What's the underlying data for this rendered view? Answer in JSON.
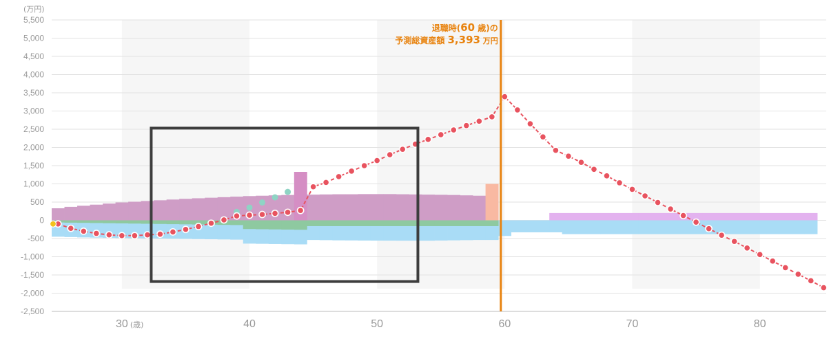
{
  "colors": {
    "band": "#f6f6f6",
    "grid": "#e2e2e2",
    "axis": "#bbbbbb",
    "asset_line": "#e8535f",
    "asset_dot_fill": "#e8535f",
    "asset_dot_stroke": "#ffffff",
    "start_marker": "#f2c21b",
    "retirement_line": "#e8830f",
    "callout_text": "#e8830f",
    "income_purple": "#cf9dc6",
    "income_green": "#8ec9a0",
    "expense_blue": "#a9dcf6",
    "spike_pink": "#d58ec4",
    "spike_peach": "#f9b9a2",
    "pension_violet": "#e3b2ef",
    "teal_dots": "#8fd3c4",
    "highlight_box": "#3d3d3d"
  },
  "chart_data": {
    "type": "line",
    "y_unit": "(万円)",
    "x_unit": "(歳)",
    "ylim": [
      -2500,
      5500
    ],
    "xlim": [
      24.5,
      85.2
    ],
    "y_ticks": [
      "5,500",
      "5,000",
      "4,500",
      "4,000",
      "3,500",
      "3,000",
      "2,500",
      "2,000",
      "1,500",
      "1,000",
      "500",
      "0",
      "-500",
      "-1,000",
      "-1,500",
      "-2,000",
      "-2,500"
    ],
    "y_tick_values": [
      5500,
      5000,
      4500,
      4000,
      3500,
      3000,
      2500,
      2000,
      1500,
      1000,
      500,
      0,
      -500,
      -1000,
      -1500,
      -2000,
      -2500
    ],
    "x_ticks": [
      {
        "value": 30,
        "label": "30",
        "suffix": "(歳)"
      },
      {
        "value": 40,
        "label": "40"
      },
      {
        "value": 50,
        "label": "50"
      },
      {
        "value": 60,
        "label": "60"
      },
      {
        "value": 70,
        "label": "70"
      },
      {
        "value": 80,
        "label": "80"
      }
    ],
    "grid": true,
    "shaded_decades": [
      [
        30,
        40
      ],
      [
        50,
        60
      ],
      [
        70,
        80
      ]
    ],
    "retirement": {
      "age": 59.7,
      "line1_pre": "退職時(",
      "line1_age": "60",
      "line1_post": " 歳)の",
      "line2_label": "予測総資産額",
      "line2_value": "3,393",
      "line2_unit": "万円"
    },
    "series": [
      {
        "id": "total_assets",
        "kind": "dotted-line",
        "x": [
          25,
          26,
          27,
          28,
          29,
          30,
          31,
          32,
          33,
          34,
          35,
          36,
          37,
          38,
          39,
          40,
          41,
          42,
          43,
          44,
          45,
          46,
          47,
          48,
          49,
          50,
          51,
          52,
          53,
          54,
          55,
          56,
          57,
          58,
          59,
          60,
          61,
          62,
          63,
          64,
          65,
          66,
          67,
          68,
          69,
          70,
          71,
          72,
          73,
          74,
          75,
          76,
          77,
          78,
          79,
          80,
          81,
          82,
          83,
          84,
          85
        ],
        "values": [
          -100,
          -220,
          -300,
          -360,
          -400,
          -420,
          -420,
          -400,
          -380,
          -320,
          -250,
          -170,
          -80,
          10,
          120,
          140,
          160,
          190,
          220,
          270,
          920,
          1040,
          1200,
          1350,
          1500,
          1640,
          1800,
          1950,
          2090,
          2220,
          2350,
          2480,
          2600,
          2720,
          2840,
          3393,
          3030,
          2650,
          2290,
          1920,
          1760,
          1590,
          1400,
          1220,
          1030,
          850,
          670,
          490,
          310,
          130,
          -50,
          -230,
          -410,
          -580,
          -760,
          -940,
          -1120,
          -1300,
          -1480,
          -1660,
          -1850
        ]
      },
      {
        "id": "savings_sub",
        "kind": "teal-dots",
        "x": [
          39,
          40,
          41,
          42,
          43
        ],
        "values": [
          230,
          350,
          490,
          630,
          780
        ]
      },
      {
        "id": "income_purple",
        "kind": "bars",
        "x": [
          25,
          26,
          27,
          28,
          29,
          30,
          31,
          32,
          33,
          34,
          35,
          36,
          37,
          38,
          39,
          40,
          41,
          42,
          43,
          44,
          45,
          46,
          47,
          48,
          49,
          50,
          51,
          52,
          53,
          54,
          55,
          56,
          57,
          58,
          59
        ],
        "values": [
          330,
          370,
          400,
          430,
          460,
          490,
          510,
          530,
          550,
          570,
          590,
          605,
          620,
          635,
          650,
          665,
          675,
          685,
          695,
          700,
          705,
          710,
          715,
          715,
          720,
          720,
          720,
          715,
          710,
          705,
          700,
          695,
          685,
          675,
          660
        ]
      },
      {
        "id": "income_green",
        "kind": "bars",
        "x": [
          25,
          26,
          27,
          28,
          29,
          30,
          31,
          32,
          33,
          34,
          35,
          36,
          37,
          38,
          39,
          40,
          41,
          42,
          43,
          44,
          45,
          46,
          47,
          48,
          49,
          50,
          51,
          52,
          53,
          54,
          55,
          56,
          57,
          58,
          59
        ],
        "values": [
          -60,
          -65,
          -70,
          -75,
          -80,
          -85,
          -90,
          -95,
          -100,
          -105,
          -110,
          -115,
          -120,
          -125,
          -130,
          -240,
          -245,
          -250,
          -255,
          -260,
          -160,
          -160,
          -160,
          -160,
          -160,
          -160,
          -160,
          -160,
          -160,
          -160,
          -160,
          -160,
          -160,
          -160,
          -160
        ]
      },
      {
        "id": "expense_blue",
        "kind": "bars",
        "x": [
          25,
          26,
          27,
          28,
          29,
          30,
          31,
          32,
          33,
          34,
          35,
          36,
          37,
          38,
          39,
          40,
          41,
          42,
          43,
          44,
          45,
          46,
          47,
          48,
          49,
          50,
          51,
          52,
          53,
          54,
          55,
          56,
          57,
          58,
          59,
          60,
          61,
          62,
          63,
          64,
          65,
          66,
          67,
          68,
          69,
          70,
          71,
          72,
          73,
          74,
          75,
          76,
          77,
          78,
          79,
          80,
          81,
          82,
          83,
          84
        ],
        "values": [
          -450,
          -460,
          -470,
          -475,
          -480,
          -485,
          -490,
          -495,
          -500,
          -505,
          -510,
          -515,
          -520,
          -525,
          -530,
          -640,
          -645,
          -650,
          -655,
          -660,
          -540,
          -545,
          -550,
          -552,
          -555,
          -557,
          -558,
          -559,
          -560,
          -560,
          -555,
          -550,
          -545,
          -540,
          -540,
          -430,
          -330,
          -330,
          -330,
          -330,
          -380,
          -380,
          -380,
          -380,
          -380,
          -380,
          -380,
          -380,
          -380,
          -380,
          -380,
          -380,
          -380,
          -380,
          -380,
          -380,
          -380,
          -380,
          -380,
          -380
        ]
      },
      {
        "id": "pension_violet",
        "kind": "bars",
        "x": [
          64,
          65,
          66,
          67,
          68,
          69,
          70,
          71,
          72,
          73,
          74,
          75,
          76,
          77,
          78,
          79,
          80,
          81,
          82,
          83,
          84
        ],
        "values": [
          200,
          200,
          200,
          200,
          200,
          200,
          200,
          200,
          200,
          200,
          200,
          200,
          200,
          200,
          200,
          200,
          200,
          200,
          200,
          200,
          200
        ]
      },
      {
        "id": "spike_pink",
        "kind": "bars",
        "x": [
          44
        ],
        "values": [
          1330
        ]
      },
      {
        "id": "spike_peach",
        "kind": "bars",
        "x": [
          59
        ],
        "values": [
          1000
        ]
      }
    ],
    "start_marker": {
      "x": 24.5,
      "value": -100
    },
    "highlight_box": {
      "x0": 32.3,
      "x1": 53.2,
      "y0": 2530,
      "y1": -1680
    }
  }
}
